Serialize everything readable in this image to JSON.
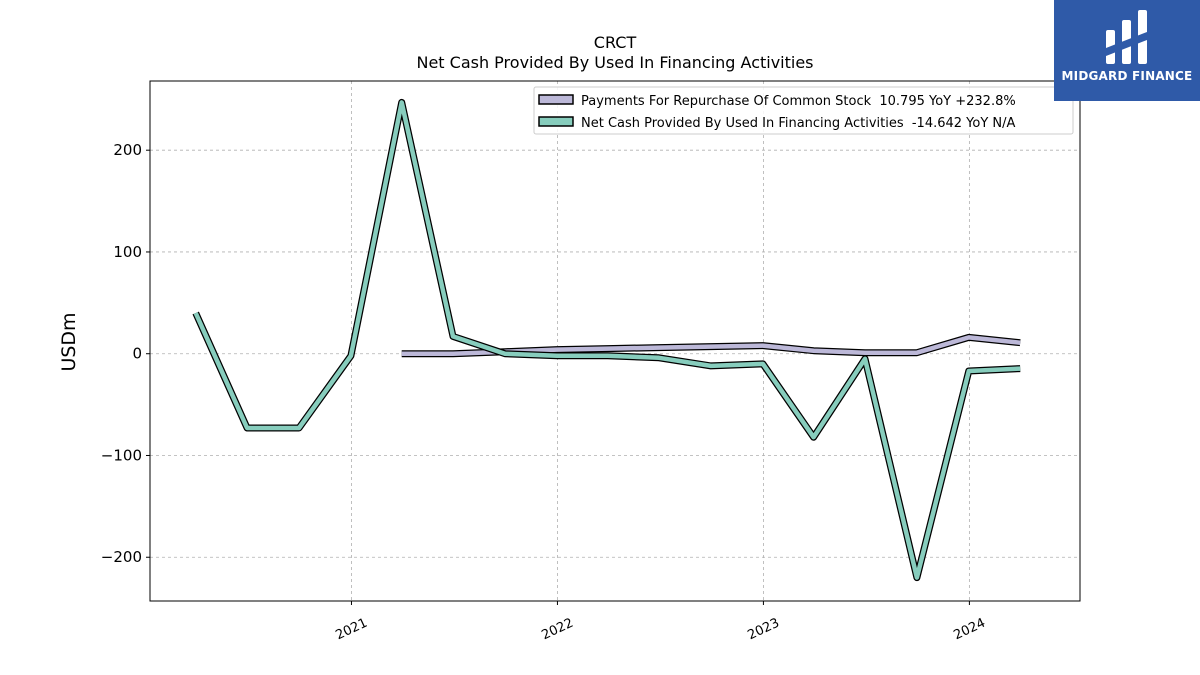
{
  "chart_data": {
    "type": "line",
    "title": "CRCT",
    "subtitle": "Net Cash Provided By Used In Financing Activities",
    "ylabel": "USDm",
    "xlabel": "",
    "xlim": [
      "2020-01-10",
      "2024-07-15"
    ],
    "ylim": [
      -243,
      268
    ],
    "x_ticks": [
      "2021",
      "2022",
      "2023",
      "2024"
    ],
    "y_ticks": [
      200,
      100,
      0,
      -100,
      -200
    ],
    "y_tick_labels": [
      "200",
      "100",
      "0",
      "−100",
      "−200"
    ],
    "grid": true,
    "legend_position": "top-right",
    "series": [
      {
        "name": "Payments For Repurchase Of Common Stock  10.795 YoY +232.8%",
        "color": "#bcb8d8",
        "points": [
          [
            "2021-03-31",
            0
          ],
          [
            "2021-06-30",
            0
          ],
          [
            "2021-09-30",
            2
          ],
          [
            "2021-12-31",
            4
          ],
          [
            "2022-03-31",
            5
          ],
          [
            "2022-06-30",
            6
          ],
          [
            "2022-09-30",
            7
          ],
          [
            "2022-12-31",
            8
          ],
          [
            "2023-03-31",
            3
          ],
          [
            "2023-06-30",
            1
          ],
          [
            "2023-09-30",
            1
          ],
          [
            "2023-12-31",
            16
          ],
          [
            "2024-03-31",
            10.8
          ]
        ]
      },
      {
        "name": "Net Cash Provided By Used In Financing Activities  -14.642 YoY N/A",
        "color": "#87cdbd",
        "points": [
          [
            "2020-03-31",
            40
          ],
          [
            "2020-06-30",
            -73
          ],
          [
            "2020-09-30",
            -73
          ],
          [
            "2020-12-31",
            -2
          ],
          [
            "2021-03-31",
            247
          ],
          [
            "2021-06-30",
            17
          ],
          [
            "2021-09-30",
            0
          ],
          [
            "2021-12-31",
            -2
          ],
          [
            "2022-03-31",
            -2
          ],
          [
            "2022-06-30",
            -4
          ],
          [
            "2022-09-30",
            -12
          ],
          [
            "2022-12-31",
            -10
          ],
          [
            "2023-03-31",
            -82
          ],
          [
            "2023-06-30",
            -5
          ],
          [
            "2023-09-30",
            -220
          ],
          [
            "2023-12-31",
            -17
          ],
          [
            "2024-03-31",
            -14.6
          ]
        ]
      }
    ]
  },
  "logo": {
    "text": "MIDGARD FINANCE",
    "color": "#2f5aa8"
  }
}
